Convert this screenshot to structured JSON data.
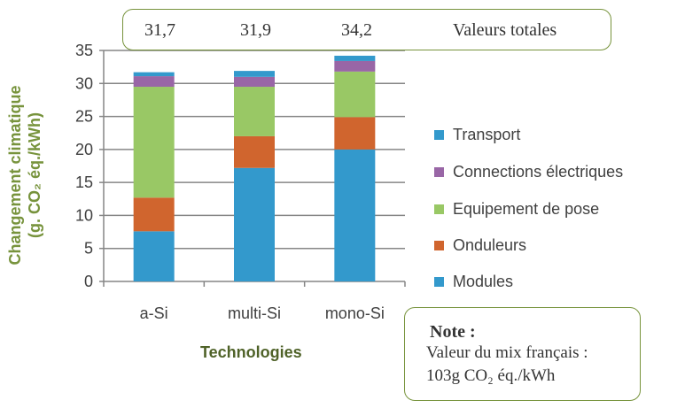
{
  "chart_data": {
    "type": "bar",
    "stacked": true,
    "categories": [
      "a-Si",
      "multi-Si",
      "mono-Si"
    ],
    "series": [
      {
        "name": "Modules",
        "color": "#3399cc",
        "values": [
          7.6,
          17.2,
          20.0
        ]
      },
      {
        "name": "Onduleurs",
        "color": "#d0652e",
        "values": [
          5.1,
          4.8,
          4.9
        ]
      },
      {
        "name": "Equipement de pose",
        "color": "#99c865",
        "values": [
          16.8,
          7.5,
          6.9
        ]
      },
      {
        "name": "Connections électriques",
        "color": "#9966a6",
        "values": [
          1.6,
          1.5,
          1.6
        ]
      },
      {
        "name": "Transport",
        "color": "#3399cc",
        "values": [
          0.6,
          0.9,
          0.8
        ]
      }
    ],
    "xlabel": "Technologies",
    "ylabel_line1": "Changement climatique",
    "ylabel_line2": "(g. CO₂ éq./kWh)",
    "ylim": [
      0,
      35
    ],
    "yticks": [
      0,
      5,
      10,
      15,
      20,
      25,
      30,
      35
    ],
    "grid": true,
    "legend_position": "right",
    "totals": [
      "31,7",
      "31,9",
      "34,2"
    ],
    "totals_label": "Valeurs totales"
  },
  "note": {
    "title": "Note :",
    "line1": "Valeur du mix français :",
    "line2": "103g CO₂ éq./kWh"
  }
}
